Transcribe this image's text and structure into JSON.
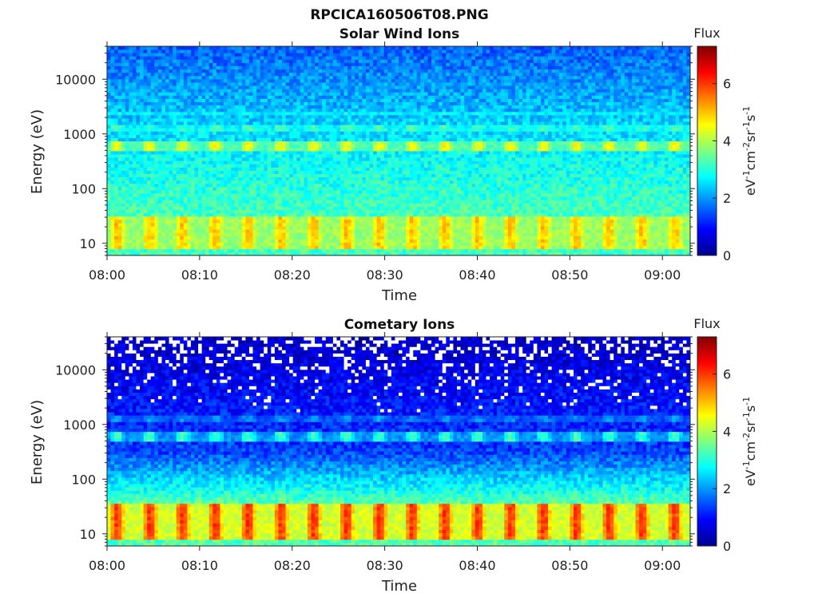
{
  "figure_title": "RPCICA160506T08.PNG",
  "chart_data": [
    {
      "type": "heatmap",
      "title": "Solar Wind Ions",
      "xlabel": "Time",
      "ylabel": "Energy (eV)",
      "x_ticks": [
        "08:00",
        "08:10",
        "08:20",
        "08:30",
        "08:40",
        "08:50",
        "09:00"
      ],
      "y_ticks": [
        "10",
        "100",
        "1000",
        "10000"
      ],
      "y_scale": "log",
      "y_range_eV": [
        6,
        40000
      ],
      "x_range": [
        "08:00",
        "09:03"
      ],
      "colorbar": {
        "label": "Flux",
        "unit": "eV-1cm-2sr-1s-1",
        "ticks": [
          "0",
          "2",
          "4",
          "6"
        ],
        "range": [
          0,
          7.3
        ],
        "colormap": "jet"
      },
      "bands": [
        {
          "energy_eV": [
            8,
            30
          ],
          "flux_peak": 5.0,
          "pulsed": true
        },
        {
          "energy_eV": [
            500,
            750
          ],
          "flux_peak": 4.5,
          "pulsed": true
        },
        {
          "energy_eV": [
            1100,
            1400
          ],
          "flux_peak": 3.2,
          "pulsed": true
        },
        {
          "energy_eV": [
            2200,
            2700
          ],
          "flux_peak": 2.8,
          "pulsed": true
        }
      ],
      "background_flux": {
        "low_energy": 3.2,
        "mid_energy": 2.8,
        "high_energy": 1.6
      },
      "missing_data": false
    },
    {
      "type": "heatmap",
      "title": "Cometary Ions",
      "xlabel": "Time",
      "ylabel": "Energy (eV)",
      "x_ticks": [
        "08:00",
        "08:10",
        "08:20",
        "08:30",
        "08:40",
        "08:50",
        "09:00"
      ],
      "y_ticks": [
        "10",
        "100",
        "1000",
        "10000"
      ],
      "y_scale": "log",
      "y_range_eV": [
        6,
        40000
      ],
      "x_range": [
        "08:00",
        "09:03"
      ],
      "colorbar": {
        "label": "Flux",
        "unit": "eV-1cm-2sr-1s-1",
        "ticks": [
          "0",
          "2",
          "4",
          "6"
        ],
        "range": [
          0,
          7.3
        ],
        "colormap": "jet"
      },
      "bands": [
        {
          "energy_eV": [
            8,
            35
          ],
          "flux_peak": 6.0,
          "pulsed": true
        },
        {
          "energy_eV": [
            500,
            750
          ],
          "flux_peak": 3.2,
          "pulsed": true
        },
        {
          "energy_eV": [
            1100,
            1400
          ],
          "flux_peak": 2.0,
          "pulsed": true
        }
      ],
      "background_flux": {
        "low_energy": 3.3,
        "mid_energy": 1.4,
        "high_energy": 0.5
      },
      "missing_data": true
    }
  ]
}
